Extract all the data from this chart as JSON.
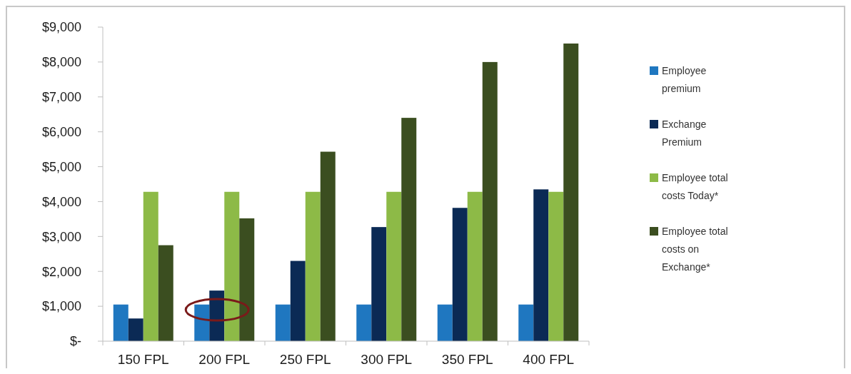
{
  "chart_data": {
    "type": "bar",
    "categories": [
      "150 FPL",
      "200 FPL",
      "250 FPL",
      "300 FPL",
      "350 FPL",
      "400 FPL"
    ],
    "series": [
      {
        "name": "Employee premium",
        "color": "#1f77c0",
        "values": [
          1050,
          1050,
          1050,
          1050,
          1050,
          1050
        ]
      },
      {
        "name": "Exchange Premium",
        "color": "#0b2a55",
        "values": [
          650,
          1450,
          2300,
          3270,
          3820,
          4350
        ]
      },
      {
        "name": "Employee total costs Today*",
        "color": "#8dba47",
        "values": [
          4280,
          4280,
          4280,
          4280,
          4280,
          4280
        ]
      },
      {
        "name": "Employee total costs on Exchange*",
        "color": "#3b4e20",
        "values": [
          2750,
          3520,
          5430,
          6400,
          8000,
          8530
        ]
      }
    ],
    "ylim": [
      0,
      9000
    ],
    "yticks": [
      {
        "value": 0,
        "label": "$-"
      },
      {
        "value": 1000,
        "label": "$1,000"
      },
      {
        "value": 2000,
        "label": "$2,000"
      },
      {
        "value": 3000,
        "label": "$3,000"
      },
      {
        "value": 4000,
        "label": "$4,000"
      },
      {
        "value": 5000,
        "label": "$5,000"
      },
      {
        "value": 6000,
        "label": "$6,000"
      },
      {
        "value": 7000,
        "label": "$7,000"
      },
      {
        "value": 8000,
        "label": "$8,000"
      },
      {
        "value": 9000,
        "label": "$9,000"
      }
    ],
    "grid": false,
    "legend": "right"
  }
}
